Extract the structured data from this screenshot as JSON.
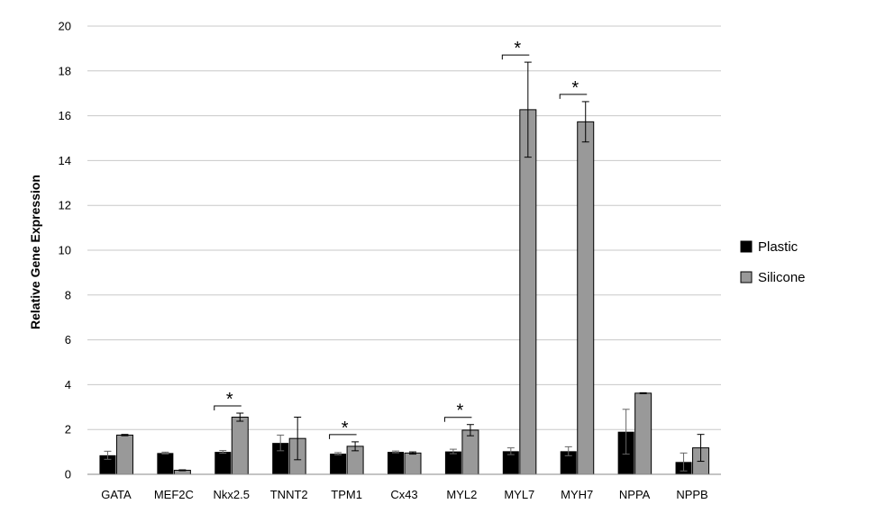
{
  "chart_data": {
    "type": "bar",
    "title": "",
    "xlabel": "",
    "ylabel": "Relative Gene Expression",
    "ylim": [
      0,
      20
    ],
    "yticks": [
      0,
      2,
      4,
      6,
      8,
      10,
      12,
      14,
      16,
      18,
      20
    ],
    "grid": true,
    "legend_position": "right",
    "categories": [
      "GATA",
      "MEF2C",
      "Nkx2.5",
      "TNNT2",
      "TPM1",
      "Cx43",
      "MYL2",
      "MYL7",
      "MYH7",
      "NPPA",
      "NPPB"
    ],
    "series": [
      {
        "name": "Plastic",
        "color": "#000000",
        "values": [
          0.85,
          0.95,
          1.0,
          1.4,
          0.92,
          1.0,
          1.02,
          1.03,
          1.03,
          1.9,
          0.55
        ],
        "errors": [
          0.18,
          0.04,
          0.06,
          0.35,
          0.05,
          0.04,
          0.1,
          0.15,
          0.2,
          1.0,
          0.4
        ]
      },
      {
        "name": "Silicone",
        "color": "#999999",
        "values": [
          1.75,
          0.18,
          2.55,
          1.6,
          1.25,
          0.95,
          1.97,
          16.27,
          15.73,
          3.62,
          1.18
        ],
        "errors": [
          0.03,
          0.02,
          0.18,
          0.95,
          0.2,
          0.05,
          0.25,
          2.12,
          0.9,
          0.02,
          0.6
        ]
      }
    ],
    "annotations": [
      {
        "category": "Nkx2.5",
        "label": "*"
      },
      {
        "category": "TPM1",
        "label": "*"
      },
      {
        "category": "MYL2",
        "label": "*"
      },
      {
        "category": "MYL7",
        "label": "*"
      },
      {
        "category": "MYH7",
        "label": "*"
      }
    ]
  }
}
